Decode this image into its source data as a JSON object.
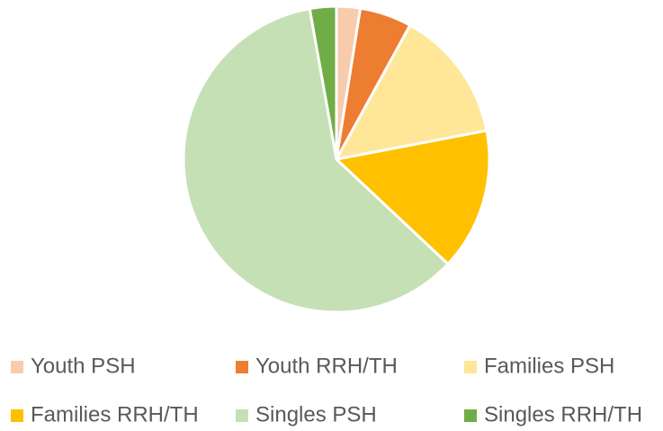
{
  "chart_data": {
    "type": "pie",
    "categories": [
      "Youth PSH",
      "Youth RRH/TH",
      "Families PSH",
      "Families RRH/TH",
      "Singles PSH",
      "Singles RRH/TH"
    ],
    "values": [
      2.5,
      5.5,
      14,
      15,
      60.2,
      2.8
    ],
    "colors": [
      "#f8cbad",
      "#ed7d31",
      "#ffe699",
      "#ffc000",
      "#c5e0b4",
      "#70ad47"
    ],
    "legend": "bottom"
  }
}
